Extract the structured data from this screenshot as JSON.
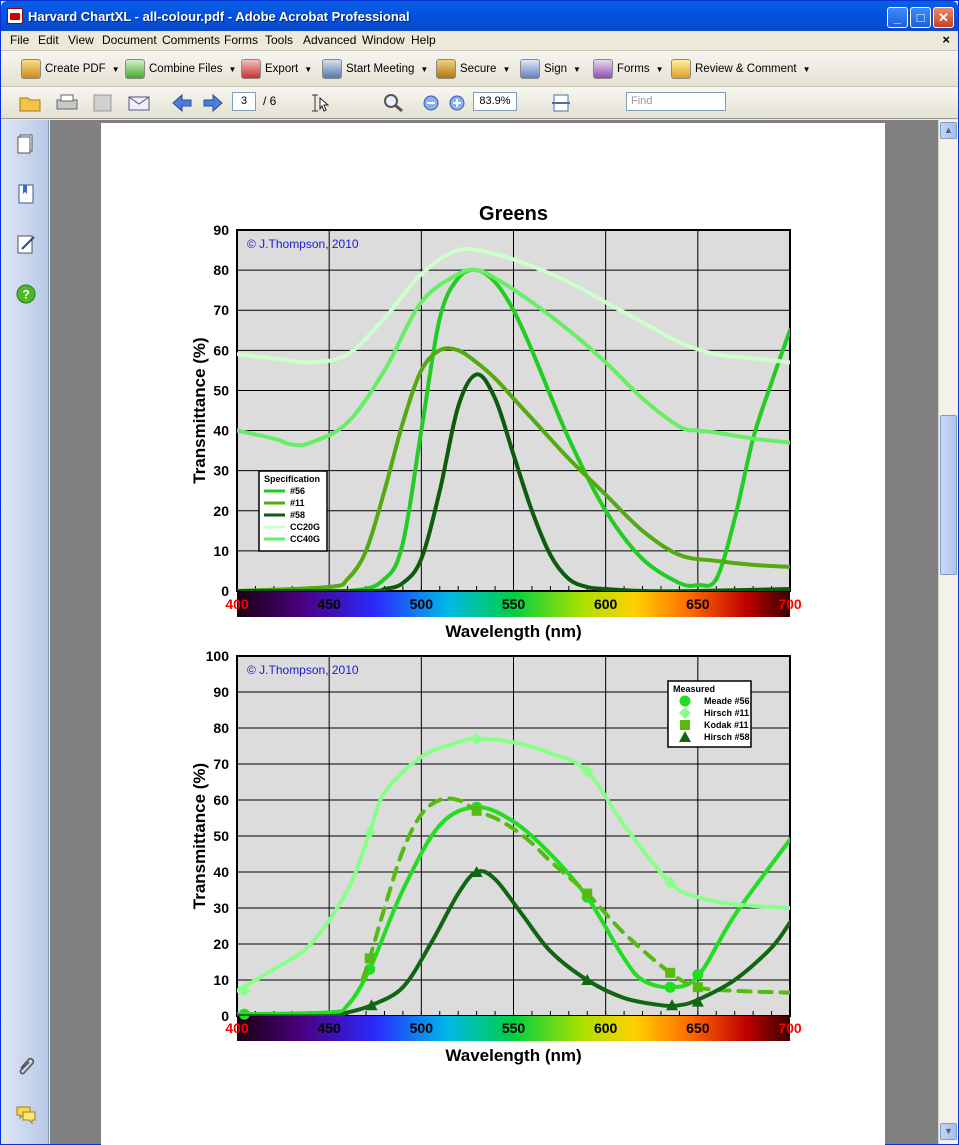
{
  "window": {
    "title": "Harvard ChartXL - all-colour.pdf - Adobe Acrobat Professional"
  },
  "menu": [
    "File",
    "Edit",
    "View",
    "Document",
    "Comments",
    "Forms",
    "Tools",
    "Advanced",
    "Window",
    "Help"
  ],
  "menu_close": "×",
  "toolbar1": [
    {
      "label": "Create PDF",
      "icon": "create-pdf-icon"
    },
    {
      "label": "Combine Files",
      "icon": "combine-files-icon"
    },
    {
      "label": "Export",
      "icon": "export-icon"
    },
    {
      "label": "Start Meeting",
      "icon": "start-meeting-icon"
    },
    {
      "label": "Secure",
      "icon": "lock-icon"
    },
    {
      "label": "Sign",
      "icon": "pen-icon"
    },
    {
      "label": "Forms",
      "icon": "forms-icon"
    },
    {
      "label": "Review & Comment",
      "icon": "review-comment-icon"
    }
  ],
  "nav": {
    "page_current": "3",
    "page_total": "/ 6",
    "zoom": "83.9%",
    "find_placeholder": "Find"
  },
  "colors": {
    "c56": "#22cc22",
    "c11": "#55aa11",
    "c58": "#0d5c0d",
    "cc20g": "#ccffcc",
    "cc40g": "#66ee66",
    "meade56": "#22dd22",
    "hirsch11": "#88ff88",
    "kodak11": "#55bb11",
    "hirsch58": "#116611"
  },
  "chart_data": [
    {
      "type": "line",
      "title": "Greens",
      "watermark": "© J.Thompson, 2010",
      "xlabel": "Wavelength (nm)",
      "ylabel": "Transmittance (%)",
      "xlim": [
        400,
        700
      ],
      "ylim": [
        0,
        90
      ],
      "xticks": [
        "400",
        "450",
        "500",
        "550",
        "600",
        "650",
        "700"
      ],
      "yticks": [
        "0",
        "10",
        "20",
        "30",
        "40",
        "50",
        "60",
        "70",
        "80",
        "90"
      ],
      "grid": true,
      "legend_title": "Specification",
      "legend_position": "bottom-left",
      "series": [
        {
          "name": "#56",
          "color": "#22cc22",
          "x": [
            400,
            460,
            480,
            490,
            500,
            510,
            520,
            530,
            540,
            550,
            560,
            580,
            600,
            620,
            640,
            650,
            660,
            670,
            680,
            690,
            700
          ],
          "y": [
            0,
            0,
            3,
            12,
            40,
            68,
            78,
            80,
            77,
            70,
            60,
            38,
            20,
            8,
            2,
            1.5,
            3,
            18,
            38,
            52,
            65
          ]
        },
        {
          "name": "#11",
          "color": "#55aa11",
          "x": [
            400,
            450,
            460,
            470,
            480,
            490,
            500,
            510,
            520,
            530,
            540,
            550,
            560,
            580,
            600,
            620,
            640,
            660,
            680,
            700
          ],
          "y": [
            0,
            1,
            3,
            10,
            25,
            42,
            55,
            60,
            60,
            57,
            53,
            48,
            43,
            33,
            24,
            15,
            9,
            7.5,
            6.5,
            6
          ]
        },
        {
          "name": "#58",
          "color": "#0d5c0d",
          "x": [
            400,
            470,
            480,
            490,
            500,
            510,
            520,
            530,
            540,
            550,
            560,
            570,
            580,
            590,
            600,
            620,
            650,
            700
          ],
          "y": [
            0,
            0,
            0.5,
            2,
            8,
            25,
            46,
            54,
            48,
            34,
            20,
            9,
            3,
            1,
            0.5,
            0,
            0,
            0.5
          ]
        },
        {
          "name": "CC20G",
          "color": "#ccffcc",
          "x": [
            400,
            420,
            440,
            460,
            480,
            500,
            520,
            540,
            560,
            580,
            600,
            620,
            640,
            660,
            680,
            700
          ],
          "y": [
            59,
            58,
            57,
            59,
            68,
            79,
            85,
            84,
            81,
            77,
            72,
            67,
            62,
            59,
            58,
            57
          ]
        },
        {
          "name": "CC40G",
          "color": "#66ee66",
          "x": [
            400,
            420,
            430,
            440,
            460,
            480,
            500,
            520,
            530,
            540,
            560,
            580,
            600,
            620,
            640,
            650,
            660,
            680,
            700
          ],
          "y": [
            40,
            38,
            36.5,
            37,
            42,
            55,
            72,
            79,
            80,
            78,
            72,
            65,
            57,
            48,
            41,
            40,
            39.5,
            38,
            37
          ]
        }
      ]
    },
    {
      "type": "line",
      "watermark": "© J.Thompson, 2010",
      "xlabel": "Wavelength (nm)",
      "ylabel": "Transmittance (%)",
      "xlim": [
        400,
        700
      ],
      "ylim": [
        0,
        100
      ],
      "xticks": [
        "400",
        "450",
        "500",
        "550",
        "600",
        "650",
        "700"
      ],
      "yticks": [
        "0",
        "10",
        "20",
        "30",
        "40",
        "50",
        "60",
        "70",
        "80",
        "90",
        "100"
      ],
      "grid": true,
      "legend_title": "Measured",
      "legend_position": "top-right",
      "series": [
        {
          "name": "Meade #56",
          "color": "#22dd22",
          "marker": "circle",
          "dash": false,
          "x": [
            400,
            450,
            460,
            472,
            490,
            510,
            530,
            550,
            570,
            590,
            610,
            620,
            635,
            650,
            670,
            700
          ],
          "y": [
            0.5,
            1,
            3,
            13,
            35,
            53,
            58,
            54,
            45,
            33,
            16,
            10,
            8,
            11,
            28,
            49
          ],
          "markers_x": [
            404,
            472,
            530,
            590,
            635,
            650
          ],
          "markers_y": [
            0.5,
            13,
            58,
            33,
            8,
            11.5
          ]
        },
        {
          "name": "Hirsch #11",
          "color": "#88ff88",
          "marker": "diamond",
          "dash": false,
          "x": [
            400,
            420,
            440,
            460,
            472,
            480,
            500,
            520,
            530,
            550,
            570,
            590,
            610,
            635,
            650,
            670,
            700
          ],
          "y": [
            7,
            13,
            20,
            35,
            51,
            62,
            72,
            76,
            77,
            76,
            73,
            68,
            53,
            37,
            33,
            31,
            30
          ],
          "markers_x": [
            404,
            472,
            530,
            590,
            635
          ],
          "markers_y": [
            7,
            51,
            77,
            68,
            37
          ]
        },
        {
          "name": "Kodak #11",
          "color": "#55bb11",
          "marker": "square",
          "dash": true,
          "x": [
            468,
            472,
            480,
            490,
            500,
            510,
            520,
            530,
            540,
            550,
            560,
            570,
            590,
            610,
            635,
            650,
            670,
            700
          ],
          "y": [
            10,
            16,
            30,
            46,
            56,
            60,
            60,
            57,
            55,
            52,
            48,
            43,
            34,
            23,
            12,
            8,
            7,
            6.5
          ],
          "markers_x": [
            472,
            530,
            590,
            635,
            650
          ],
          "markers_y": [
            16,
            57,
            34,
            12,
            8
          ]
        },
        {
          "name": "Hirsch #58",
          "color": "#116611",
          "marker": "triangle",
          "dash": false,
          "x": [
            400,
            450,
            460,
            473,
            490,
            505,
            520,
            530,
            540,
            555,
            570,
            590,
            610,
            630,
            640,
            650,
            670,
            690,
            700
          ],
          "y": [
            0,
            0,
            1,
            3,
            8,
            20,
            34,
            40,
            38,
            28,
            18,
            10,
            5,
            3,
            3,
            4.5,
            10,
            19,
            26
          ],
          "markers_x": [
            473,
            530,
            590,
            636,
            650
          ],
          "markers_y": [
            3,
            40,
            10,
            3,
            4
          ]
        }
      ]
    }
  ]
}
